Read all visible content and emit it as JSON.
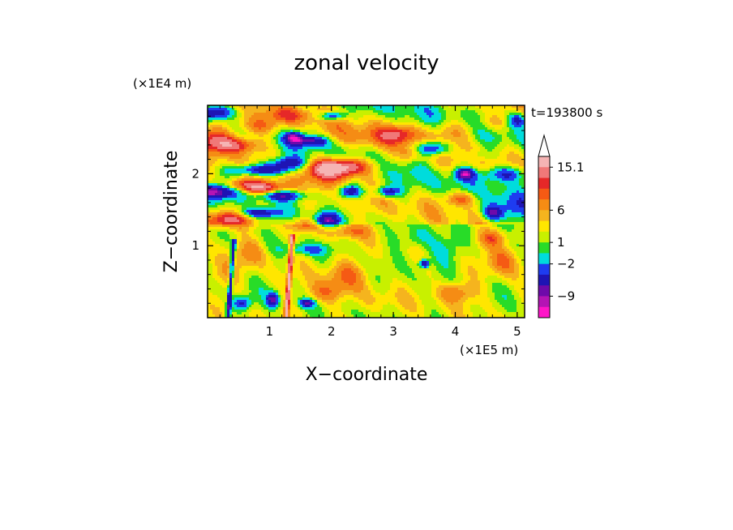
{
  "chart_data": {
    "type": "heatmap",
    "title": "zonal velocity",
    "time_label": "t=193800 s",
    "xlabel": "X−coordinate",
    "ylabel": "Z−coordinate",
    "x_unit": "(×1E5 m)",
    "y_unit": "(×1E4 m)",
    "xlim": [
      0,
      5.12
    ],
    "ylim": [
      0,
      2.95
    ],
    "x_ticks": [
      {
        "value": 1,
        "label": "1"
      },
      {
        "value": 2,
        "label": "2"
      },
      {
        "value": 3,
        "label": "3"
      },
      {
        "value": 4,
        "label": "4"
      },
      {
        "value": 5,
        "label": "5"
      }
    ],
    "y_ticks": [
      {
        "value": 1,
        "label": "1"
      },
      {
        "value": 2,
        "label": "2"
      }
    ],
    "colorbar": {
      "levels_top_to_bottom": [
        {
          "color": "#f5b4b4"
        },
        {
          "color": "#f07878"
        },
        {
          "color": "#e62828"
        },
        {
          "color": "#f55a14"
        },
        {
          "color": "#f58c14"
        },
        {
          "color": "#f5b41e"
        },
        {
          "color": "#ffe600"
        },
        {
          "color": "#c8f000"
        },
        {
          "color": "#28dc28"
        },
        {
          "color": "#00dcdc"
        },
        {
          "color": "#1e3cf0"
        },
        {
          "color": "#1e14b4"
        },
        {
          "color": "#6e0aaa"
        },
        {
          "color": "#b414b4"
        },
        {
          "color": "#ff14c8"
        }
      ],
      "labels": [
        {
          "text": "15.1",
          "after_level": 0
        },
        {
          "text": "6",
          "after_level": 4
        },
        {
          "text": "1",
          "after_level": 7
        },
        {
          "text": "−2",
          "after_level": 9
        },
        {
          "text": "−9",
          "after_level": 12
        }
      ]
    },
    "field_description": "Banded zonal velocity field: alternating positive (orange/red) and negative (blue) layers above z≈1.3, mostly weak positive (yellow/green) below, with two narrow tilted streaks near x≈0.4 and x≈1.3 at low levels.",
    "blobs": [
      {
        "x": 0.1,
        "z": 2.5,
        "v": 8,
        "rx": 0.35,
        "rz": 0.18
      },
      {
        "x": 0.5,
        "z": 2.4,
        "v": 9,
        "rx": 0.4,
        "rz": 0.12
      },
      {
        "x": 0.8,
        "z": 2.65,
        "v": 6,
        "rx": 0.35,
        "rz": 0.12
      },
      {
        "x": 0.4,
        "z": 2.75,
        "v": 2,
        "rx": 0.3,
        "rz": 0.1
      },
      {
        "x": 0.1,
        "z": 2.85,
        "v": -10,
        "rx": 0.3,
        "rz": 0.1
      },
      {
        "x": 0.9,
        "z": 2.05,
        "v": -11,
        "rx": 0.5,
        "rz": 0.08
      },
      {
        "x": 1.3,
        "z": 2.15,
        "v": -9,
        "rx": 0.3,
        "rz": 0.08
      },
      {
        "x": 0.1,
        "z": 1.75,
        "v": -11,
        "rx": 0.35,
        "rz": 0.1
      },
      {
        "x": 0.9,
        "z": 1.8,
        "v": 10,
        "rx": 0.35,
        "rz": 0.09
      },
      {
        "x": 0.5,
        "z": 1.85,
        "v": 6,
        "rx": 0.3,
        "rz": 0.08
      },
      {
        "x": 1.2,
        "z": 1.7,
        "v": -9,
        "rx": 0.4,
        "rz": 0.07
      },
      {
        "x": 0.8,
        "z": 1.45,
        "v": -10,
        "rx": 0.35,
        "rz": 0.07
      },
      {
        "x": 0.5,
        "z": 1.4,
        "v": 7,
        "rx": 0.4,
        "rz": 0.12
      },
      {
        "x": 0.2,
        "z": 1.35,
        "v": 6,
        "rx": 0.3,
        "rz": 0.12
      },
      {
        "x": 1.4,
        "z": 2.5,
        "v": -10,
        "rx": 0.15,
        "rz": 0.08
      },
      {
        "x": 1.7,
        "z": 2.45,
        "v": -9,
        "rx": 0.25,
        "rz": 0.07
      },
      {
        "x": 2.0,
        "z": 2.8,
        "v": -10,
        "rx": 0.2,
        "rz": 0.06
      },
      {
        "x": 2.2,
        "z": 2.1,
        "v": 10,
        "rx": 0.45,
        "rz": 0.12
      },
      {
        "x": 2.0,
        "z": 2.05,
        "v": 8,
        "rx": 0.5,
        "rz": 0.15
      },
      {
        "x": 2.3,
        "z": 1.75,
        "v": -10,
        "rx": 0.2,
        "rz": 0.09
      },
      {
        "x": 1.9,
        "z": 1.35,
        "v": -11,
        "rx": 0.2,
        "rz": 0.1
      },
      {
        "x": 1.6,
        "z": 1.3,
        "v": 6,
        "rx": 0.3,
        "rz": 0.1
      },
      {
        "x": 2.3,
        "z": 1.2,
        "v": 5,
        "rx": 0.3,
        "rz": 0.1
      },
      {
        "x": 1.6,
        "z": 0.95,
        "v": -5,
        "rx": 0.35,
        "rz": 0.08
      },
      {
        "x": 2.9,
        "z": 1.75,
        "v": -9,
        "rx": 0.2,
        "rz": 0.08
      },
      {
        "x": 3.1,
        "z": 2.55,
        "v": 6,
        "rx": 0.3,
        "rz": 0.12
      },
      {
        "x": 3.3,
        "z": 2.3,
        "v": 5,
        "rx": 0.2,
        "rz": 0.12
      },
      {
        "x": 3.6,
        "z": 2.35,
        "v": -11,
        "rx": 0.3,
        "rz": 0.1
      },
      {
        "x": 3.95,
        "z": 2.6,
        "v": 4,
        "rx": 0.35,
        "rz": 0.15
      },
      {
        "x": 4.15,
        "z": 2.0,
        "v": -11,
        "rx": 0.15,
        "rz": 0.08
      },
      {
        "x": 4.1,
        "z": 1.65,
        "v": 7,
        "rx": 0.25,
        "rz": 0.1
      },
      {
        "x": 4.6,
        "z": 1.45,
        "v": -9,
        "rx": 0.15,
        "rz": 0.1
      },
      {
        "x": 4.4,
        "z": 2.25,
        "v": -3,
        "rx": 0.3,
        "rz": 0.1
      },
      {
        "x": 4.8,
        "z": 2.0,
        "v": -9,
        "rx": 0.35,
        "rz": 0.12
      },
      {
        "x": 5.0,
        "z": 2.75,
        "v": -8,
        "rx": 0.15,
        "rz": 0.1
      },
      {
        "x": 4.9,
        "z": 1.5,
        "v": -4,
        "rx": 0.3,
        "rz": 0.25
      },
      {
        "x": 3.5,
        "z": 0.75,
        "v": -11,
        "rx": 0.08,
        "rz": 0.06
      },
      {
        "x": 3.8,
        "z": 0.9,
        "v": -3,
        "rx": 0.3,
        "rz": 0.2
      },
      {
        "x": 3.4,
        "z": 1.1,
        "v": -3,
        "rx": 0.3,
        "rz": 0.15
      },
      {
        "x": 2.2,
        "z": 0.6,
        "v": 5,
        "rx": 0.35,
        "rz": 0.2
      },
      {
        "x": 1.9,
        "z": 0.35,
        "v": 5,
        "rx": 0.3,
        "rz": 0.15
      },
      {
        "x": 4.0,
        "z": 0.35,
        "v": 6,
        "rx": 0.3,
        "rz": 0.15
      },
      {
        "x": 4.8,
        "z": 0.8,
        "v": 6,
        "rx": 0.25,
        "rz": 0.2
      },
      {
        "x": 4.6,
        "z": 1.1,
        "v": 6,
        "rx": 0.25,
        "rz": 0.12
      },
      {
        "x": 2.8,
        "z": 0.25,
        "v": 2,
        "rx": 0.3,
        "rz": 0.15
      },
      {
        "x": 0.2,
        "z": 0.6,
        "v": 3,
        "rx": 0.3,
        "rz": 0.2
      },
      {
        "x": 0.7,
        "z": 0.9,
        "v": 4,
        "rx": 0.25,
        "rz": 0.2
      },
      {
        "x": 1.05,
        "z": 0.25,
        "v": -10,
        "rx": 0.1,
        "rz": 0.1
      },
      {
        "x": 1.6,
        "z": 0.2,
        "v": -9,
        "rx": 0.12,
        "rz": 0.06
      },
      {
        "x": 0.55,
        "z": 0.2,
        "v": -8,
        "rx": 0.15,
        "rz": 0.1
      },
      {
        "x": 1.3,
        "z": 2.8,
        "v": 4,
        "rx": 0.4,
        "rz": 0.1
      },
      {
        "x": 2.5,
        "z": 2.5,
        "v": 3,
        "rx": 0.5,
        "rz": 0.15
      },
      {
        "x": 4.6,
        "z": 2.7,
        "v": 4,
        "rx": 0.3,
        "rz": 0.12
      }
    ],
    "streaks": [
      {
        "x0": 0.33,
        "x1": 0.43,
        "zmax": 1.1,
        "v": -10
      },
      {
        "x0": 1.27,
        "x1": 1.37,
        "zmax": 1.15,
        "v": 12
      }
    ]
  }
}
